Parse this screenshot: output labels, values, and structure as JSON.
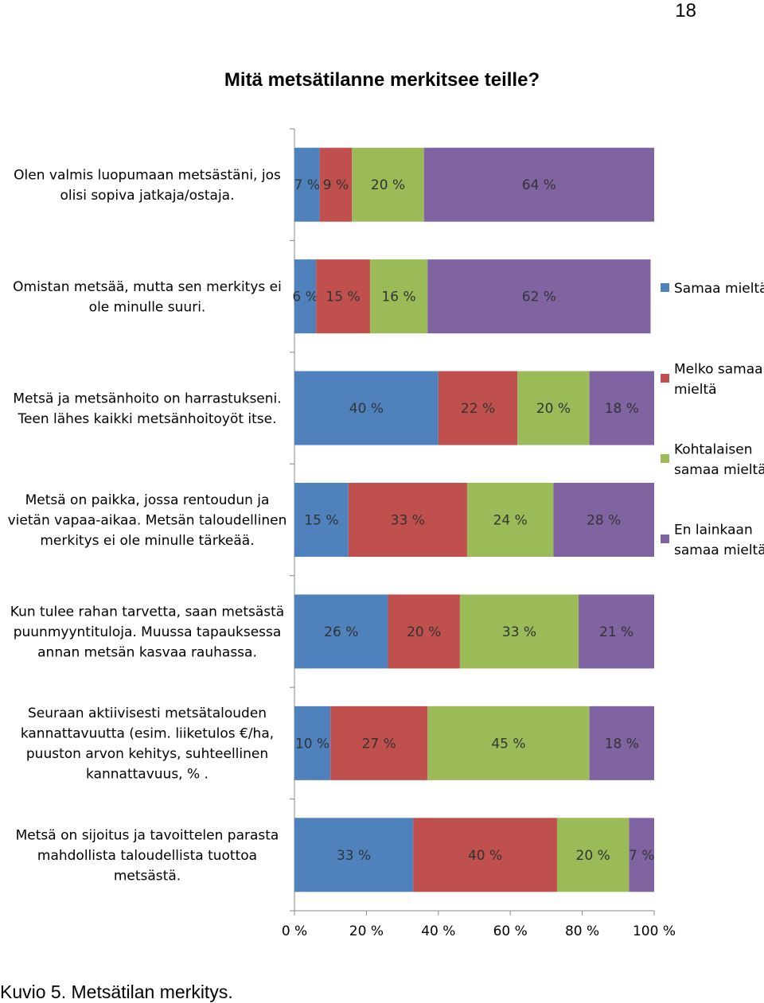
{
  "page": {
    "number": "18",
    "title": "Mitä metsätilanne merkitsee teille?",
    "caption": "Kuvio 5. Metsätilan merkitys."
  },
  "chart_data": {
    "type": "bar",
    "orientation": "horizontal",
    "stacked": "percent",
    "title": "Mitä metsätilanne merkitsee teille?",
    "xlim": [
      0,
      100
    ],
    "xticks": [
      "0 %",
      "20 %",
      "40 %",
      "60 %",
      "80 %",
      "100 %"
    ],
    "legend_position": "right",
    "categories": [
      [
        "Olen valmis luopumaan metsästäni, jos",
        "olisi sopiva jatkaja/ostaja."
      ],
      [
        "Omistan metsää, mutta sen merkitys ei",
        "ole minulle suuri."
      ],
      [
        "Metsä ja metsänhoito on harrastukseni.",
        "Teen lähes kaikki metsänhoitoyöt itse."
      ],
      [
        "Metsä on paikka, jossa rentoudun ja",
        "vietän vapaa-aikaa. Metsän taloudellinen",
        "merkitys ei ole minulle tärkeää."
      ],
      [
        "Kun tulee rahan tarvetta, saan metsästä",
        "puunmyyntituloja. Muussa tapauksessa",
        "annan metsän kasvaa rauhassa."
      ],
      [
        "Seuraan aktiivisesti metsätalouden",
        "kannattavuutta (esim. liiketulos €/ha,",
        "puuston arvon kehitys, suhteellinen",
        "kannattavuus, % ."
      ],
      [
        "Metsä on sijoitus ja tavoittelen parasta",
        "mahdollista taloudellista tuottoa",
        "metsästä."
      ]
    ],
    "series": [
      {
        "name": [
          "Samaa mieltä"
        ],
        "color": "#4F81BD",
        "values": [
          7,
          6,
          40,
          15,
          26,
          10,
          33
        ]
      },
      {
        "name": [
          "Melko samaa",
          "mieltä"
        ],
        "color": "#C0504D",
        "values": [
          9,
          15,
          22,
          33,
          20,
          27,
          40
        ]
      },
      {
        "name": [
          "Kohtalaisen",
          "samaa mieltä"
        ],
        "color": "#9BBB59",
        "values": [
          20,
          16,
          20,
          24,
          33,
          45,
          20
        ]
      },
      {
        "name": [
          "En lainkaan",
          "samaa mieltä"
        ],
        "color": "#8064A2",
        "values": [
          64,
          62,
          18,
          28,
          21,
          18,
          7
        ]
      }
    ],
    "value_suffix": " %"
  }
}
